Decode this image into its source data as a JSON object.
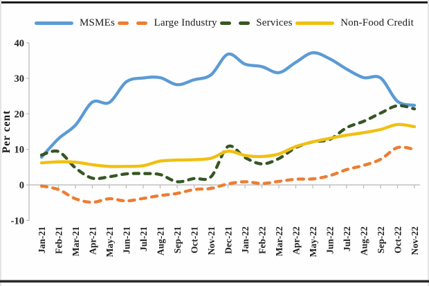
{
  "figure": {
    "ylabel": "Per cent",
    "accent_colors": {
      "msmes_blue": "#5b9bd5",
      "large_industry_orange": "#ed7d31",
      "services_green": "#375623",
      "non_food_credit_yellow": "#f0c011",
      "axis_grey": "#c0c0c0",
      "text_dark": "#1f1f1f"
    }
  },
  "chart_data": {
    "type": "line",
    "title": "",
    "xlabel": "",
    "ylabel": "Per cent",
    "ylim": [
      -10,
      40
    ],
    "yticks": [
      40,
      30,
      20,
      10,
      0,
      -10
    ],
    "grid": false,
    "legend_position": "top",
    "categories": [
      "Jan-21",
      "Feb-21",
      "Mar-21",
      "Apr-21",
      "May-21",
      "Jun-21",
      "Jul-21",
      "Aug-21",
      "Sep-21",
      "Oct-21",
      "Nov-21",
      "Dec-21",
      "Jan-22",
      "Feb-22",
      "Mar-22",
      "Apr-22",
      "May-22",
      "Jun-22",
      "Jul-22",
      "Aug-22",
      "Sep-22",
      "Oct-22",
      "Nov-22"
    ],
    "series": [
      {
        "name": "MSMEs",
        "color": "#5b9bd5",
        "dash": false,
        "values": [
          7.8,
          13.0,
          16.8,
          23.3,
          23.2,
          29.0,
          30.1,
          30.2,
          28.2,
          29.6,
          31.0,
          36.8,
          34.0,
          33.3,
          31.6,
          34.5,
          37.2,
          35.5,
          32.6,
          30.2,
          30.1,
          23.5,
          22.4
        ]
      },
      {
        "name": "Large Industry",
        "color": "#ed7d31",
        "dash": true,
        "values": [
          -0.3,
          -1.3,
          -3.9,
          -4.9,
          -3.9,
          -4.5,
          -3.8,
          -3.0,
          -2.4,
          -1.3,
          -1.0,
          0.3,
          0.9,
          0.4,
          1.0,
          1.6,
          1.7,
          2.6,
          4.3,
          5.5,
          7.2,
          10.5,
          10.0
        ]
      },
      {
        "name": "Services",
        "color": "#375623",
        "dash": true,
        "values": [
          8.4,
          9.4,
          4.8,
          1.9,
          2.3,
          3.1,
          3.2,
          2.9,
          0.9,
          1.8,
          2.3,
          10.8,
          7.7,
          5.9,
          7.4,
          10.5,
          12.1,
          12.8,
          16.1,
          17.9,
          20.2,
          22.3,
          21.4
        ]
      },
      {
        "name": "Non-Food Credit",
        "color": "#f0c011",
        "dash": false,
        "values": [
          6.2,
          6.5,
          6.4,
          5.7,
          5.2,
          5.2,
          5.4,
          6.7,
          7.0,
          7.1,
          7.5,
          9.5,
          8.3,
          8.0,
          8.7,
          10.8,
          12.1,
          13.1,
          14.0,
          14.7,
          15.6,
          17.0,
          16.4
        ]
      }
    ]
  }
}
